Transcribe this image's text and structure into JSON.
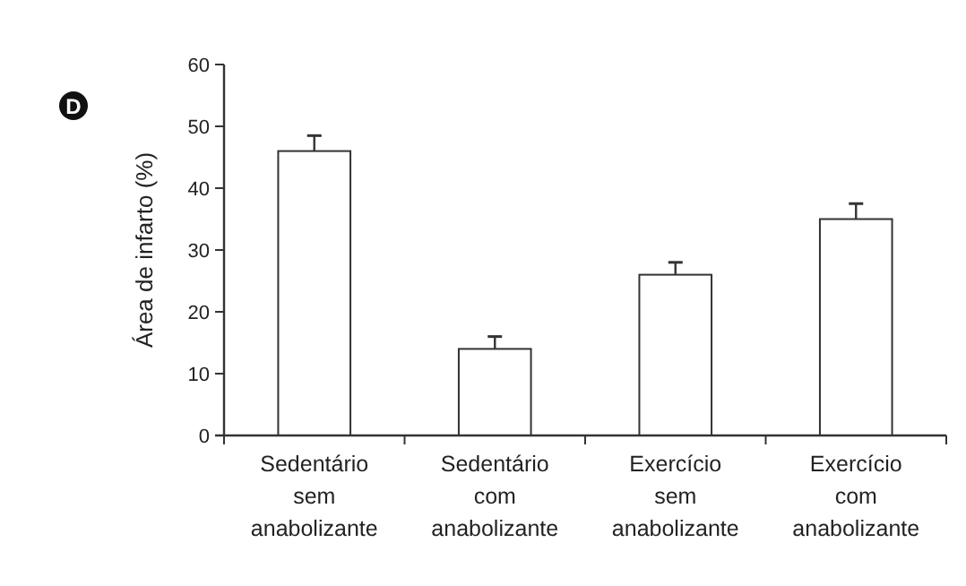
{
  "chart_data": {
    "type": "bar",
    "ylabel": "Área de infarto (%)",
    "annotations": [
      "D"
    ],
    "categories": [
      "Sedentário\nsem\nanabolizante",
      "Sedentário\ncom\nanabolizante",
      "Exercício\nsem\nanabolizante",
      "Exercício\ncom\nanabolizante"
    ],
    "values": [
      46,
      14,
      26,
      35
    ],
    "color": "#ffffff",
    "errors": [
      2.5,
      2,
      2,
      2.5
    ],
    "ylim": [
      0,
      60
    ],
    "yticks": [
      0,
      10,
      20,
      30,
      40,
      50,
      60
    ],
    "grid": false
  }
}
